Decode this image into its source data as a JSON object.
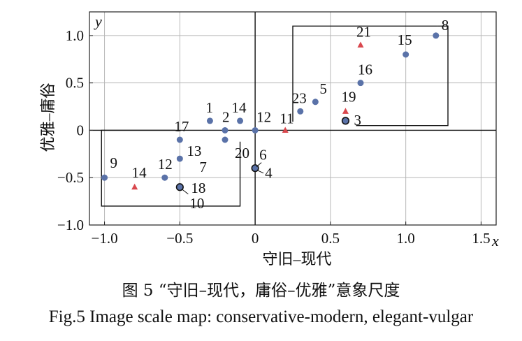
{
  "chart_data": {
    "type": "scatter",
    "xlabel": "守旧–现代",
    "ylabel": "优雅–庸俗",
    "x_axis_symbol": "x",
    "y_axis_symbol": "y",
    "xlim": [
      -1.1,
      1.6
    ],
    "ylim": [
      -1.0,
      1.25
    ],
    "grid": true,
    "x_ticks": [
      -1.0,
      -0.5,
      0,
      0.5,
      1.0,
      1.5
    ],
    "x_tick_labels": [
      "−1.0",
      "−0.5",
      "0",
      "0.5",
      "1.0",
      "1.5"
    ],
    "y_ticks": [
      -1.0,
      -0.5,
      0,
      0.5,
      1.0
    ],
    "y_tick_labels": [
      "−1.0",
      "−0.5",
      "0",
      "0.5",
      "1.0"
    ],
    "series": [
      {
        "name": "blue points",
        "marker": "circle",
        "color": "#5a72a8",
        "points": [
          {
            "label": "8",
            "x": 1.2,
            "y": 1.0
          },
          {
            "label": "15",
            "x": 1.0,
            "y": 0.8
          },
          {
            "label": "16",
            "x": 0.7,
            "y": 0.5
          },
          {
            "label": "5",
            "x": 0.4,
            "y": 0.3
          },
          {
            "label": "23",
            "x": 0.3,
            "y": 0.2
          },
          {
            "label": "1",
            "x": -0.3,
            "y": 0.1
          },
          {
            "label": "2",
            "x": -0.2,
            "y": 0.0
          },
          {
            "label": "14",
            "x": -0.1,
            "y": 0.1
          },
          {
            "label": "12",
            "x": 0.0,
            "y": 0.0
          },
          {
            "label": "17",
            "x": -0.5,
            "y": -0.1
          },
          {
            "label": "20",
            "x": -0.2,
            "y": -0.1
          },
          {
            "label": "13",
            "x": -0.5,
            "y": -0.3
          },
          {
            "label": "9",
            "x": -1.0,
            "y": -0.5
          },
          {
            "label": "12",
            "x": -0.6,
            "y": -0.5
          }
        ]
      },
      {
        "name": "red triangles",
        "marker": "triangle",
        "color": "#d9484e",
        "points": [
          {
            "label": "21",
            "x": 0.7,
            "y": 0.9
          },
          {
            "label": "19",
            "x": 0.6,
            "y": 0.2
          },
          {
            "label": "11",
            "x": 0.2,
            "y": 0.0
          },
          {
            "label": "14",
            "x": -0.8,
            "y": -0.6
          }
        ]
      },
      {
        "name": "overlapping points",
        "marker": "circle-outlined",
        "color": "#5a72a8",
        "points": [
          {
            "label": "3",
            "x": 0.6,
            "y": 0.1
          },
          {
            "label": "6 / 4",
            "x": 0.0,
            "y": -0.4
          },
          {
            "label": "7 / 18 / 10",
            "x": -0.5,
            "y": -0.6
          }
        ]
      }
    ],
    "point_labels": [
      "8",
      "15",
      "16",
      "5",
      "23",
      "1",
      "2",
      "14",
      "12",
      "17",
      "20",
      "13",
      "9",
      "12",
      "21",
      "19",
      "11",
      "14",
      "3",
      "6",
      "4",
      "7",
      "18",
      "10"
    ],
    "cluster_boxes": [
      {
        "name": "upper-right group",
        "x_range": [
          0.25,
          1.28
        ],
        "y_range": [
          0.05,
          1.1
        ]
      },
      {
        "name": "lower-left group",
        "x_range": [
          -1.02,
          -0.1
        ],
        "y_range": [
          -0.8,
          0.0
        ]
      }
    ]
  },
  "caption": {
    "chinese": "图 5 “守旧–现代，庸俗–优雅”意象尺度",
    "english": "Fig.5 Image scale map: conservative-modern, elegant-vulgar"
  }
}
